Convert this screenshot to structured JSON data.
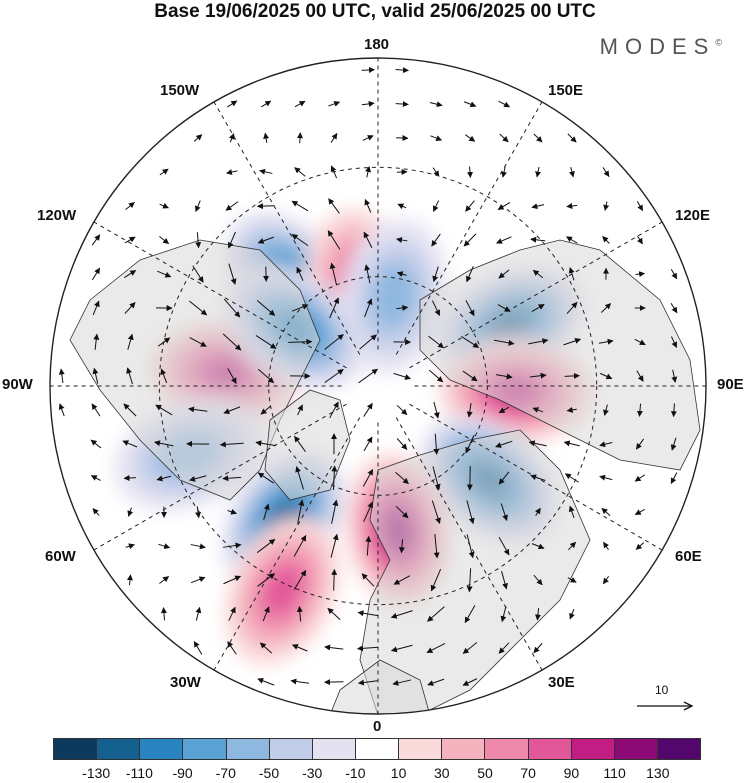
{
  "title": "Base 19/06/2025 00 UTC, valid 25/06/2025 00 UTC",
  "brand": "MODES",
  "brand_mark": "©",
  "longitude_labels": {
    "lon_180": "180",
    "lon_150e": "150E",
    "lon_120e": "120E",
    "lon_90e": "90E",
    "lon_60e": "60E",
    "lon_30e": "30E",
    "lon_0": "0",
    "lon_30w": "30W",
    "lon_60w": "60W",
    "lon_90w": "90W",
    "lon_120w": "120W",
    "lon_150w": "150W"
  },
  "vector_reference": {
    "label": "10",
    "icon": "arrow-right-icon"
  },
  "colorbar": {
    "colors": [
      "#0d3a5c",
      "#14608f",
      "#2a84bf",
      "#5ba2d4",
      "#8fb8e0",
      "#c2cde9",
      "#e4e2f1",
      "#ffffff",
      "#fadada",
      "#f5b3c0",
      "#ef89ac",
      "#e2579a",
      "#c21d83",
      "#8c0a76",
      "#53066b"
    ],
    "tick_labels": [
      "-130",
      "-110",
      "-90",
      "-70",
      "-50",
      "-30",
      "-10",
      "10",
      "30",
      "50",
      "70",
      "90",
      "110",
      "130"
    ]
  },
  "anomaly_centers": [
    {
      "sign": "negative",
      "level": -70,
      "lat": 52,
      "lon": -140
    },
    {
      "sign": "positive",
      "level": 50,
      "lat": 62,
      "lon": -170
    },
    {
      "sign": "negative",
      "level": -30,
      "lat": 65,
      "lon": 170
    },
    {
      "sign": "negative",
      "level": -90,
      "lat": 50,
      "lon": 115
    },
    {
      "sign": "positive",
      "level": 70,
      "lat": 52,
      "lon": 88
    },
    {
      "sign": "negative",
      "level": -90,
      "lat": 50,
      "lon": 50
    },
    {
      "sign": "positive",
      "level": 90,
      "lat": 50,
      "lon": 8
    },
    {
      "sign": "negative",
      "level": -90,
      "lat": 45,
      "lon": -35
    },
    {
      "sign": "positive",
      "level": 70,
      "lat": 48,
      "lon": -95
    },
    {
      "sign": "negative",
      "level": -30,
      "lat": 35,
      "lon": -70
    },
    {
      "sign": "positive",
      "level": 50,
      "lat": 28,
      "lon": -25
    },
    {
      "sign": "negative",
      "level": -70,
      "lat": 62,
      "lon": -125
    }
  ]
}
